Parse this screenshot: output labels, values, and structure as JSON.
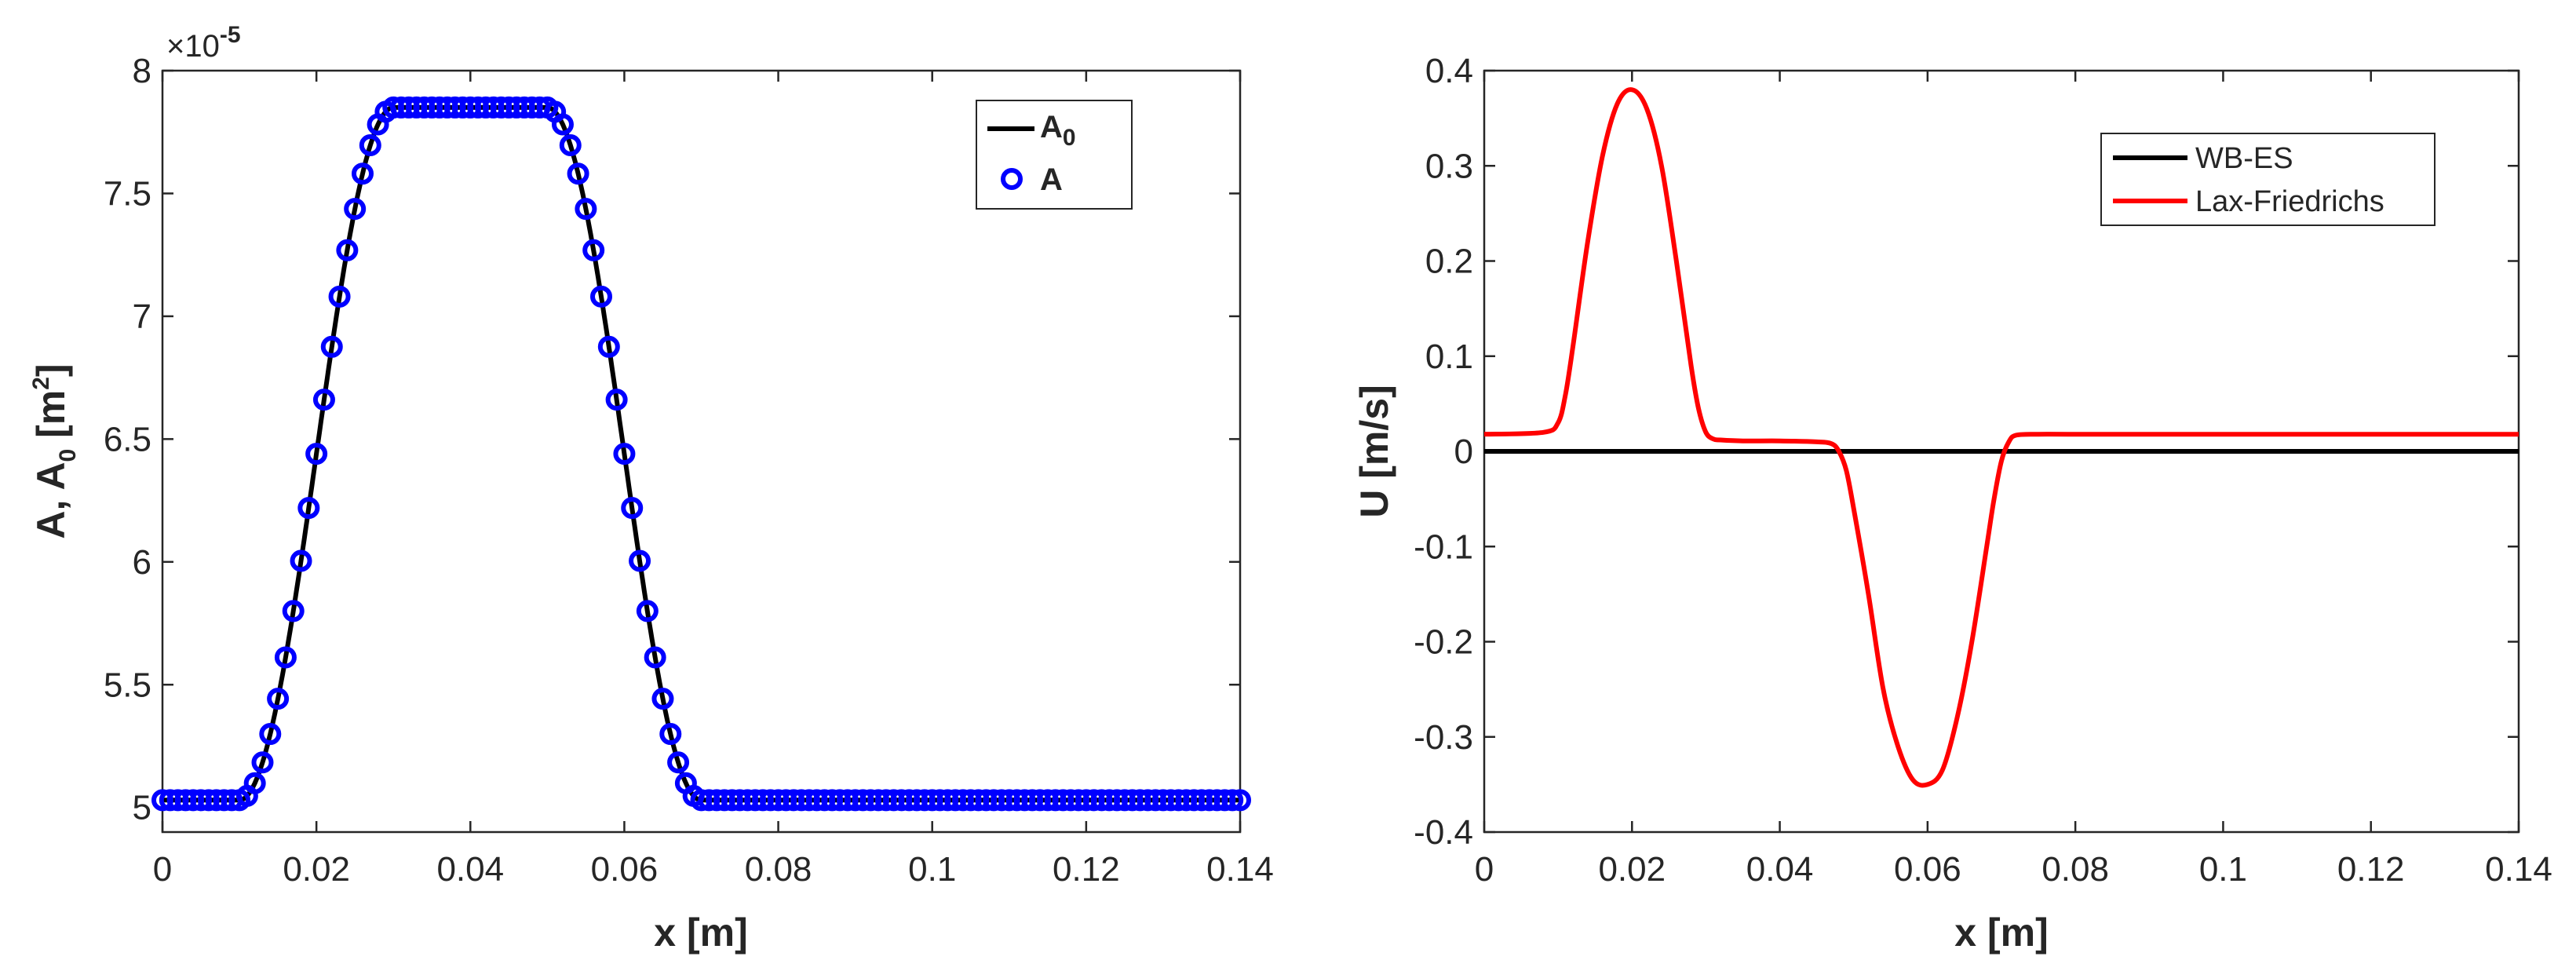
{
  "chart_data": [
    {
      "type": "line",
      "xlabel": "x [m]",
      "ylabel": "A, A",
      "ylabel_subscript": "0",
      "ylabel_unit_base": " [m",
      "ylabel_unit_sup": "2",
      "ylabel_unit_end": "]",
      "exponent_label": "×10",
      "exponent_power": "-5",
      "xlim": [
        0,
        0.14
      ],
      "ylim": [
        4.9,
        8.0
      ],
      "xticks": [
        0,
        0.02,
        0.04,
        0.06,
        0.08,
        0.1,
        0.12,
        0.14
      ],
      "xtick_labels": [
        "0",
        "0.02",
        "0.04",
        "0.06",
        "0.08",
        "0.1",
        "0.12",
        "0.14"
      ],
      "yticks": [
        5,
        5.5,
        6,
        6.5,
        7,
        7.5,
        8
      ],
      "ytick_labels": [
        "5",
        "5.5",
        "6",
        "6.5",
        "7",
        "7.5",
        "8"
      ],
      "grid": false,
      "legend_position": "top-right",
      "series": [
        {
          "name": "A",
          "name_subscript": "0",
          "style": "line",
          "color": "#000000",
          "profile": {
            "base": 5.03,
            "peak": 7.85,
            "x_rise_start": 0.01,
            "x_rise_end": 0.03,
            "x_fall_start": 0.05,
            "x_fall_end": 0.07,
            "x_start": 0,
            "x_end": 0.14
          }
        },
        {
          "name": "A",
          "style": "circle-markers",
          "color": "#0000ff",
          "marker_spacing": 0.001,
          "profile": {
            "base": 5.03,
            "peak": 7.85,
            "x_rise_start": 0.01,
            "x_rise_end": 0.03,
            "x_fall_start": 0.05,
            "x_fall_end": 0.07,
            "x_start": 0,
            "x_end": 0.14
          }
        }
      ]
    },
    {
      "type": "line",
      "xlabel": "x [m]",
      "ylabel": "U [m/s]",
      "xlim": [
        0,
        0.14
      ],
      "ylim": [
        -0.4,
        0.4
      ],
      "xticks": [
        0,
        0.02,
        0.04,
        0.06,
        0.08,
        0.1,
        0.12,
        0.14
      ],
      "xtick_labels": [
        "0",
        "0.02",
        "0.04",
        "0.06",
        "0.08",
        "0.1",
        "0.12",
        "0.14"
      ],
      "yticks": [
        -0.4,
        -0.3,
        -0.2,
        -0.1,
        0,
        0.1,
        0.2,
        0.3,
        0.4
      ],
      "ytick_labels": [
        "-0.4",
        "-0.3",
        "-0.2",
        "-0.1",
        "0",
        "0.1",
        "0.2",
        "0.3",
        "0.4"
      ],
      "grid": false,
      "legend_position": "top-right",
      "series": [
        {
          "name": "WB-ES",
          "color": "#000000",
          "x": [
            0,
            0.14
          ],
          "y": [
            0,
            0
          ]
        },
        {
          "name": "Lax-Friedrichs",
          "color": "#ff0000",
          "x": [
            0,
            0.008,
            0.01,
            0.011,
            0.012,
            0.014,
            0.016,
            0.018,
            0.02,
            0.022,
            0.024,
            0.026,
            0.028,
            0.029,
            0.03,
            0.031,
            0.032,
            0.035,
            0.04,
            0.045,
            0.047,
            0.048,
            0.049,
            0.05,
            0.052,
            0.054,
            0.056,
            0.058,
            0.06,
            0.062,
            0.064,
            0.066,
            0.068,
            0.069,
            0.07,
            0.071,
            0.072,
            0.075,
            0.08,
            0.1,
            0.12,
            0.14
          ],
          "y": [
            0.018,
            0.02,
            0.03,
            0.06,
            0.11,
            0.22,
            0.31,
            0.365,
            0.38,
            0.36,
            0.3,
            0.2,
            0.09,
            0.045,
            0.02,
            0.013,
            0.012,
            0.011,
            0.011,
            0.01,
            0.008,
            0.0,
            -0.02,
            -0.06,
            -0.15,
            -0.25,
            -0.31,
            -0.345,
            -0.35,
            -0.335,
            -0.28,
            -0.2,
            -0.1,
            -0.05,
            -0.01,
            0.01,
            0.017,
            0.018,
            0.018,
            0.018,
            0.018,
            0.018
          ]
        }
      ]
    }
  ]
}
